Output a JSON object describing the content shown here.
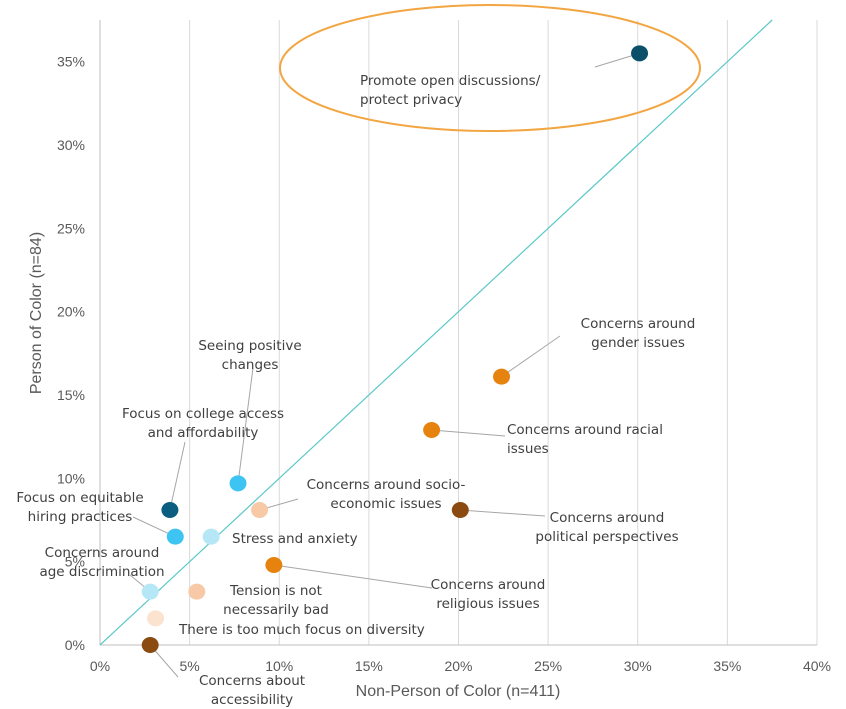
{
  "chart_data": {
    "type": "scatter",
    "xlabel": "Non-Person of Color (n=411)",
    "ylabel": "Person of Color (n=84)",
    "xlim": [
      0,
      40
    ],
    "ylim": [
      0,
      37.5
    ],
    "xticks": [
      "0%",
      "5%",
      "10%",
      "15%",
      "20%",
      "25%",
      "30%",
      "35%",
      "40%"
    ],
    "yticks": [
      "0%",
      "5%",
      "10%",
      "15%",
      "20%",
      "25%",
      "30%",
      "35%"
    ],
    "grid": "vertical",
    "reference_line": "y = x",
    "points": [
      {
        "label": [
          "Promote open discussions/",
          "protect privacy"
        ],
        "x": 30.1,
        "y": 35.5,
        "color": "#0b4f68"
      },
      {
        "label": [
          "Concerns around",
          "gender issues"
        ],
        "x": 22.4,
        "y": 16.1,
        "color": "#e6830f"
      },
      {
        "label": [
          "Concerns around racial",
          "issues"
        ],
        "x": 18.5,
        "y": 12.9,
        "color": "#e6830f"
      },
      {
        "label": [
          "Concerns around",
          "political perspectives"
        ],
        "x": 20.1,
        "y": 8.1,
        "color": "#8b4a0f"
      },
      {
        "label": [
          "Concerns around",
          "religious issues"
        ],
        "x": 9.7,
        "y": 4.8,
        "color": "#e6830f"
      },
      {
        "label": [
          "Concerns around socio-",
          "economic issues"
        ],
        "x": 8.9,
        "y": 8.1,
        "color": "#f7c9a6"
      },
      {
        "label": [
          "Seeing positive",
          "changes"
        ],
        "x": 7.7,
        "y": 9.7,
        "color": "#3ec4f2"
      },
      {
        "label": [
          "Focus on college access",
          "and affordability"
        ],
        "x": 3.9,
        "y": 8.1,
        "color": "#0b5e80"
      },
      {
        "label": [
          "Focus on equitable",
          "hiring practices"
        ],
        "x": 4.2,
        "y": 6.5,
        "color": "#3ec4f2"
      },
      {
        "label": [
          "Stress and anxiety"
        ],
        "x": 6.2,
        "y": 6.5,
        "color": "#b6e7f7"
      },
      {
        "label": [
          "Concerns around",
          "age discrimination"
        ],
        "x": 2.8,
        "y": 3.2,
        "color": "#b6e7f7"
      },
      {
        "label": [
          "Tension is not",
          "necessarily bad"
        ],
        "x": 5.4,
        "y": 3.2,
        "color": "#f7c9a6"
      },
      {
        "label": [
          "There is too much focus on diversity"
        ],
        "x": 3.1,
        "y": 1.6,
        "color": "#fbe3cf"
      },
      {
        "label": [
          "Concerns about",
          "accessibility"
        ],
        "x": 2.8,
        "y": 0.0,
        "color": "#8b4a0f"
      }
    ],
    "highlight": {
      "point_index": 0,
      "color": "#f2a541"
    },
    "colors": {
      "gridline": "#d9d9d9",
      "axis": "#bfbfbf",
      "diagonal": "#5bc8c8",
      "leader": "#a6a6a6",
      "text": "#404040"
    }
  }
}
